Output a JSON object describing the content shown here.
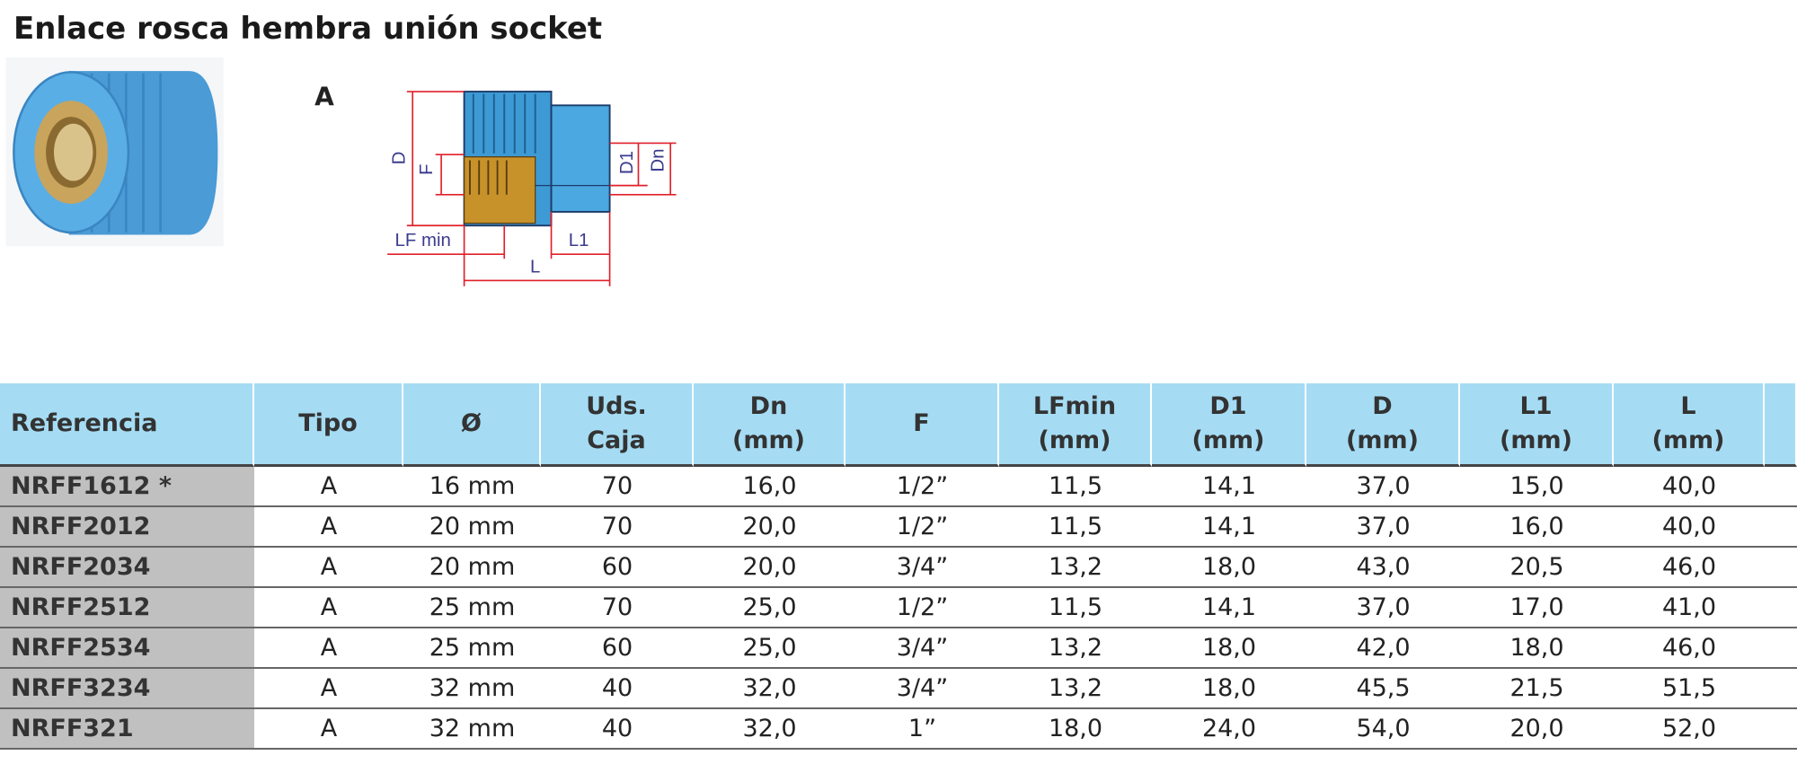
{
  "title": "Enlace rosca hembra unión socket",
  "diagram": {
    "type_label": "A",
    "labels": {
      "D": "D",
      "F": "F",
      "D1": "D1",
      "Dn": "Dn",
      "LFmin": "LF min",
      "L1": "L1",
      "L": "L"
    }
  },
  "table": {
    "columns": [
      [
        "Referencia"
      ],
      [
        "Tipo"
      ],
      [
        "Ø"
      ],
      [
        "Uds.",
        "Caja"
      ],
      [
        "Dn",
        "(mm)"
      ],
      [
        "F"
      ],
      [
        "LFmin",
        "(mm)"
      ],
      [
        "D1",
        "(mm)"
      ],
      [
        "D",
        "(mm)"
      ],
      [
        "L1",
        "(mm)"
      ],
      [
        "L",
        "(mm)"
      ]
    ],
    "rows": [
      [
        "NRFF1612 *",
        "A",
        "16 mm",
        "70",
        "16,0",
        "1/2”",
        "11,5",
        "14,1",
        "37,0",
        "15,0",
        "40,0"
      ],
      [
        "NRFF2012",
        "A",
        "20 mm",
        "70",
        "20,0",
        "1/2”",
        "11,5",
        "14,1",
        "37,0",
        "16,0",
        "40,0"
      ],
      [
        "NRFF2034",
        "A",
        "20 mm",
        "60",
        "20,0",
        "3/4”",
        "13,2",
        "18,0",
        "43,0",
        "20,5",
        "46,0"
      ],
      [
        "NRFF2512",
        "A",
        "25 mm",
        "70",
        "25,0",
        "1/2”",
        "11,5",
        "14,1",
        "37,0",
        "17,0",
        "41,0"
      ],
      [
        "NRFF2534",
        "A",
        "25 mm",
        "60",
        "25,0",
        "3/4”",
        "13,2",
        "18,0",
        "42,0",
        "18,0",
        "46,0"
      ],
      [
        "NRFF3234",
        "A",
        "32 mm",
        "40",
        "32,0",
        "3/4”",
        "13,2",
        "18,0",
        "45,5",
        "21,5",
        "51,5"
      ],
      [
        "NRFF321",
        "A",
        "32 mm",
        "40",
        "32,0",
        "1”",
        "18,0",
        "24,0",
        "54,0",
        "20,0",
        "52,0"
      ]
    ]
  }
}
